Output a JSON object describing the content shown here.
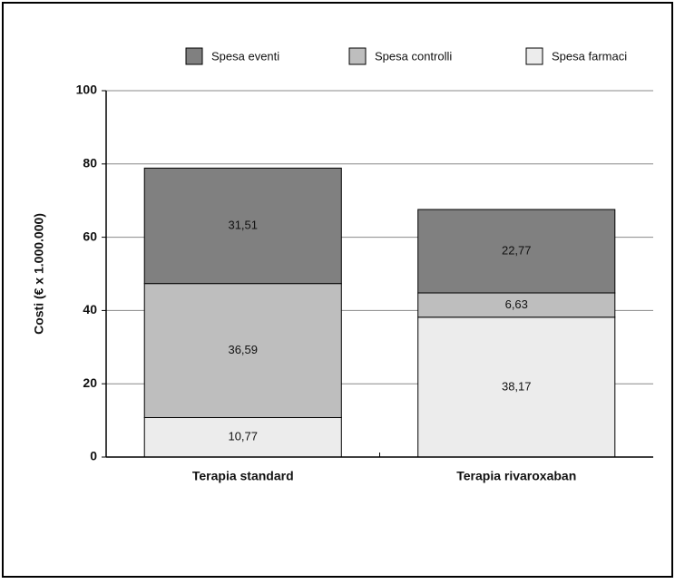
{
  "chart_data": {
    "type": "stacked-bar",
    "y_label": "Costi (€ x 1.000.000)",
    "categories": [
      "Terapia standard",
      "Terapia rivaroxaban"
    ],
    "series": [
      {
        "name": "Spesa eventi",
        "color": "#808080",
        "values": [
          31.51,
          22.77
        ],
        "value_labels": [
          "31,51",
          "22,77"
        ]
      },
      {
        "name": "Spesa controlli",
        "color": "#bebebe",
        "values": [
          36.59,
          6.63
        ],
        "value_labels": [
          "36,59",
          "6,63"
        ]
      },
      {
        "name": "Spesa farmaci",
        "color": "#ececec",
        "values": [
          10.77,
          38.17
        ],
        "value_labels": [
          "10,77",
          "38,17"
        ]
      }
    ],
    "ylim": [
      0,
      100
    ],
    "yticks": [
      0,
      20,
      40,
      60,
      80,
      100
    ],
    "grid": true,
    "legend": "top"
  }
}
